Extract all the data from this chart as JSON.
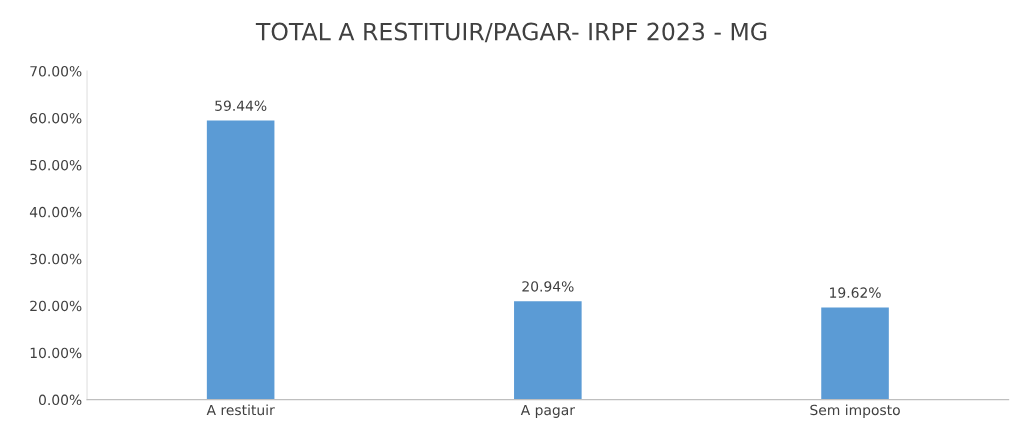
{
  "chart_data": {
    "type": "bar",
    "title": "TOTAL A RESTITUIR/PAGAR- IRPF 2023 - MG",
    "categories": [
      "A restituir",
      "A pagar",
      "Sem imposto"
    ],
    "values": [
      59.44,
      20.94,
      19.62
    ],
    "value_labels": [
      "59.44%",
      "20.94%",
      "19.62%"
    ],
    "color": "#5b9bd5",
    "ylim": [
      0,
      70
    ],
    "yticks": [
      {
        "value": 0,
        "label": "0.00%"
      },
      {
        "value": 10,
        "label": "10.00%"
      },
      {
        "value": 20,
        "label": "20.00%"
      },
      {
        "value": 30,
        "label": "30.00%"
      },
      {
        "value": 40,
        "label": "40.00%"
      },
      {
        "value": 50,
        "label": "50.00%"
      },
      {
        "value": 60,
        "label": "60.00%"
      },
      {
        "value": 70,
        "label": "70.00%"
      }
    ],
    "grid": false,
    "legend": false
  }
}
